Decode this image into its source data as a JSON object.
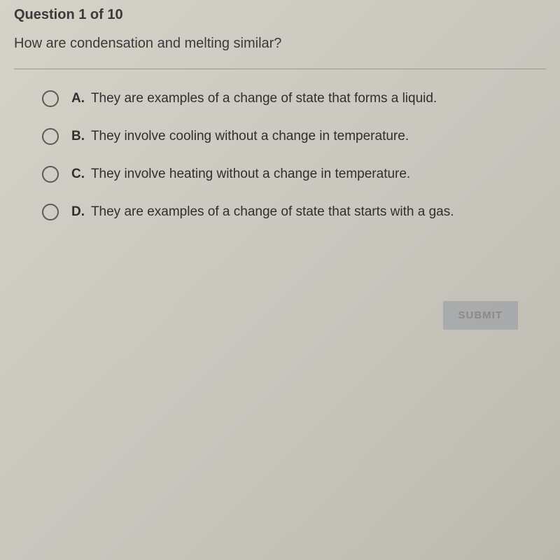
{
  "header": {
    "question_number": "Question 1 of 10"
  },
  "question": {
    "text": "How are condensation and melting similar?"
  },
  "options": [
    {
      "letter": "A.",
      "text": "They are examples of a change of state that forms a liquid."
    },
    {
      "letter": "B.",
      "text": "They involve cooling without a change in temperature."
    },
    {
      "letter": "C.",
      "text": "They involve heating without a change in temperature."
    },
    {
      "letter": "D.",
      "text": "They are examples of a change of state that starts with a gas."
    }
  ],
  "submit": {
    "label": "SUBMIT"
  },
  "colors": {
    "text": "#3a3a3a",
    "radio_border": "#5a5a5a",
    "divider": "#9a988f",
    "submit_bg": "rgba(120,130,150,0.35)",
    "submit_text": "#8a8a8a"
  }
}
